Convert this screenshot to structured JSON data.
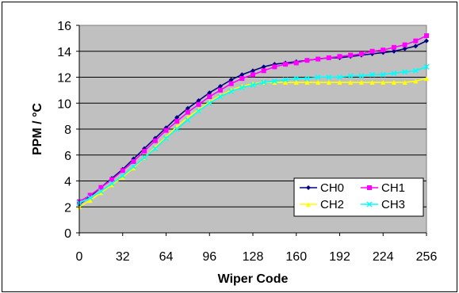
{
  "chart_data": {
    "type": "line",
    "title": "",
    "xlabel": "Wiper Code",
    "ylabel": "PPM / °C",
    "xlim": [
      0,
      256
    ],
    "ylim": [
      0,
      16
    ],
    "xticks": [
      0,
      32,
      64,
      96,
      128,
      160,
      192,
      224,
      256
    ],
    "yticks": [
      0,
      2,
      4,
      6,
      8,
      10,
      12,
      14,
      16
    ],
    "grid": "horizontal",
    "legend_position": "bottom-right",
    "plot_background": "#c0c0c0",
    "x": [
      0,
      8,
      16,
      24,
      32,
      40,
      48,
      56,
      64,
      72,
      80,
      88,
      96,
      104,
      112,
      120,
      128,
      136,
      144,
      152,
      160,
      168,
      176,
      184,
      192,
      200,
      208,
      216,
      224,
      232,
      240,
      248,
      256
    ],
    "series": [
      {
        "name": "CH0",
        "color": "#000080",
        "marker": "diamond",
        "values": [
          2.2,
          2.8,
          3.5,
          4.2,
          4.9,
          5.7,
          6.5,
          7.3,
          8.1,
          8.9,
          9.6,
          10.2,
          10.8,
          11.3,
          11.8,
          12.2,
          12.5,
          12.8,
          13.0,
          13.1,
          13.2,
          13.3,
          13.4,
          13.5,
          13.5,
          13.6,
          13.7,
          13.8,
          13.9,
          14.0,
          14.2,
          14.4,
          14.8
        ]
      },
      {
        "name": "CH1",
        "color": "#ff00ff",
        "marker": "square",
        "values": [
          2.4,
          2.9,
          3.5,
          4.1,
          4.8,
          5.5,
          6.3,
          7.1,
          7.9,
          8.6,
          9.3,
          9.9,
          10.5,
          11.0,
          11.5,
          11.9,
          12.2,
          12.5,
          12.8,
          13.0,
          13.1,
          13.3,
          13.4,
          13.5,
          13.6,
          13.7,
          13.8,
          14.0,
          14.1,
          14.3,
          14.5,
          14.8,
          15.2
        ]
      },
      {
        "name": "CH2",
        "color": "#ffff00",
        "marker": "triangle",
        "values": [
          2.0,
          2.5,
          3.1,
          3.7,
          4.3,
          5.0,
          5.8,
          6.6,
          7.4,
          8.2,
          8.9,
          9.5,
          10.1,
          10.6,
          11.0,
          11.3,
          11.5,
          11.6,
          11.6,
          11.6,
          11.6,
          11.6,
          11.6,
          11.6,
          11.6,
          11.6,
          11.6,
          11.6,
          11.6,
          11.6,
          11.6,
          11.7,
          11.9
        ]
      },
      {
        "name": "CH3",
        "color": "#00ffff",
        "marker": "cross",
        "values": [
          2.3,
          2.7,
          3.2,
          3.8,
          4.4,
          5.1,
          5.8,
          6.5,
          7.3,
          8.0,
          8.7,
          9.4,
          10.0,
          10.5,
          10.9,
          11.2,
          11.4,
          11.6,
          11.7,
          11.8,
          11.9,
          11.9,
          12.0,
          12.0,
          12.0,
          12.1,
          12.1,
          12.2,
          12.2,
          12.3,
          12.4,
          12.5,
          12.8
        ]
      }
    ]
  }
}
